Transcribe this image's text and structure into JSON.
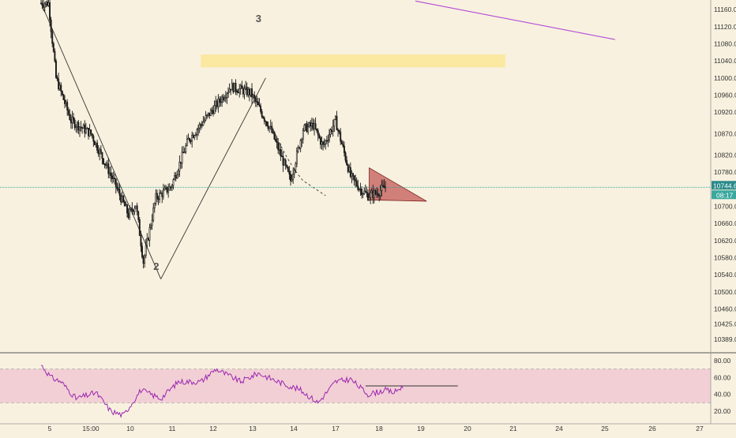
{
  "colors": {
    "background": "#f8f1df",
    "up": "#1a1a1a",
    "down": "#1a1a1a",
    "price_line": "#26a69a",
    "price_badge": "#2a8a8a",
    "zone": "#fbe79a",
    "triangle": "#c0504d",
    "trend_purple": "#b44ad8",
    "rsi_line": "#9c27b0",
    "rsi_band": "#f1c9d3",
    "axis_text": "#333333",
    "wave_label": "#555555"
  },
  "chart_data": [
    {
      "type": "candlestick",
      "title": "",
      "xlabel": "",
      "ylabel": "",
      "x_ticks": [
        "5",
        "15:00",
        "10",
        "11",
        "12",
        "13",
        "14",
        "17",
        "18",
        "19",
        "20",
        "21",
        "24",
        "25",
        "26",
        "27"
      ],
      "y_ticks": [
        11160.0,
        11120.0,
        11080.0,
        11040.0,
        11000.0,
        10960.0,
        10920.0,
        10870.0,
        10820.0,
        10780.0,
        10700.0,
        10660.0,
        10620.0,
        10580.0,
        10540.0,
        10500.0,
        10460.0,
        10425.0,
        10389.0
      ],
      "ylim": [
        10360,
        11175
      ],
      "current_price": 10744.6,
      "countdown": "08:17",
      "waypoints": [
        {
          "t": 0,
          "p": 11175
        },
        {
          "t": 6,
          "p": 11175
        },
        {
          "t": 12,
          "p": 11000
        },
        {
          "t": 24,
          "p": 10900
        },
        {
          "t": 40,
          "p": 10870
        },
        {
          "t": 58,
          "p": 10760
        },
        {
          "t": 70,
          "p": 10680
        },
        {
          "t": 76,
          "p": 10705
        },
        {
          "t": 82,
          "p": 10570
        },
        {
          "t": 92,
          "p": 10720
        },
        {
          "t": 104,
          "p": 10745
        },
        {
          "t": 118,
          "p": 10855
        },
        {
          "t": 136,
          "p": 10920
        },
        {
          "t": 152,
          "p": 10980
        },
        {
          "t": 168,
          "p": 10965
        },
        {
          "t": 184,
          "p": 10880
        },
        {
          "t": 200,
          "p": 10760
        },
        {
          "t": 210,
          "p": 10880
        },
        {
          "t": 218,
          "p": 10890
        },
        {
          "t": 226,
          "p": 10840
        },
        {
          "t": 236,
          "p": 10900
        },
        {
          "t": 248,
          "p": 10770
        },
        {
          "t": 256,
          "p": 10740
        },
        {
          "t": 262,
          "p": 10725
        },
        {
          "t": 268,
          "p": 10730
        },
        {
          "t": 276,
          "p": 10745
        }
      ],
      "annotations": {
        "wave_labels": [
          "2",
          "3"
        ],
        "resistance_zone": {
          "from": 11025,
          "to": 11055,
          "t_from": 128,
          "t_to": 372
        },
        "triangle": {
          "top": 10790,
          "bottom": 10715,
          "apex": 10712,
          "t_from": 263,
          "t_to": 309
        },
        "trendline": {
          "t_from": 300,
          "p_from": 11180,
          "t_to": 460,
          "p_to": 11090
        }
      }
    },
    {
      "type": "line",
      "title": "",
      "name": "",
      "y_ticks": [
        80.0,
        60.0,
        40.0,
        20.0
      ],
      "ylim": [
        8,
        92
      ],
      "band": [
        30,
        70
      ],
      "level_line": 50,
      "waypoints": [
        {
          "t": 0,
          "v": 75
        },
        {
          "t": 8,
          "v": 60
        },
        {
          "t": 16,
          "v": 55
        },
        {
          "t": 28,
          "v": 35
        },
        {
          "t": 44,
          "v": 42
        },
        {
          "t": 56,
          "v": 20
        },
        {
          "t": 66,
          "v": 15
        },
        {
          "t": 80,
          "v": 45
        },
        {
          "t": 96,
          "v": 35
        },
        {
          "t": 110,
          "v": 55
        },
        {
          "t": 128,
          "v": 55
        },
        {
          "t": 140,
          "v": 70
        },
        {
          "t": 160,
          "v": 55
        },
        {
          "t": 174,
          "v": 65
        },
        {
          "t": 190,
          "v": 55
        },
        {
          "t": 208,
          "v": 45
        },
        {
          "t": 222,
          "v": 30
        },
        {
          "t": 236,
          "v": 55
        },
        {
          "t": 248,
          "v": 58
        },
        {
          "t": 262,
          "v": 40
        },
        {
          "t": 276,
          "v": 45
        },
        {
          "t": 283,
          "v": 42
        },
        {
          "t": 290,
          "v": 50
        }
      ]
    }
  ]
}
